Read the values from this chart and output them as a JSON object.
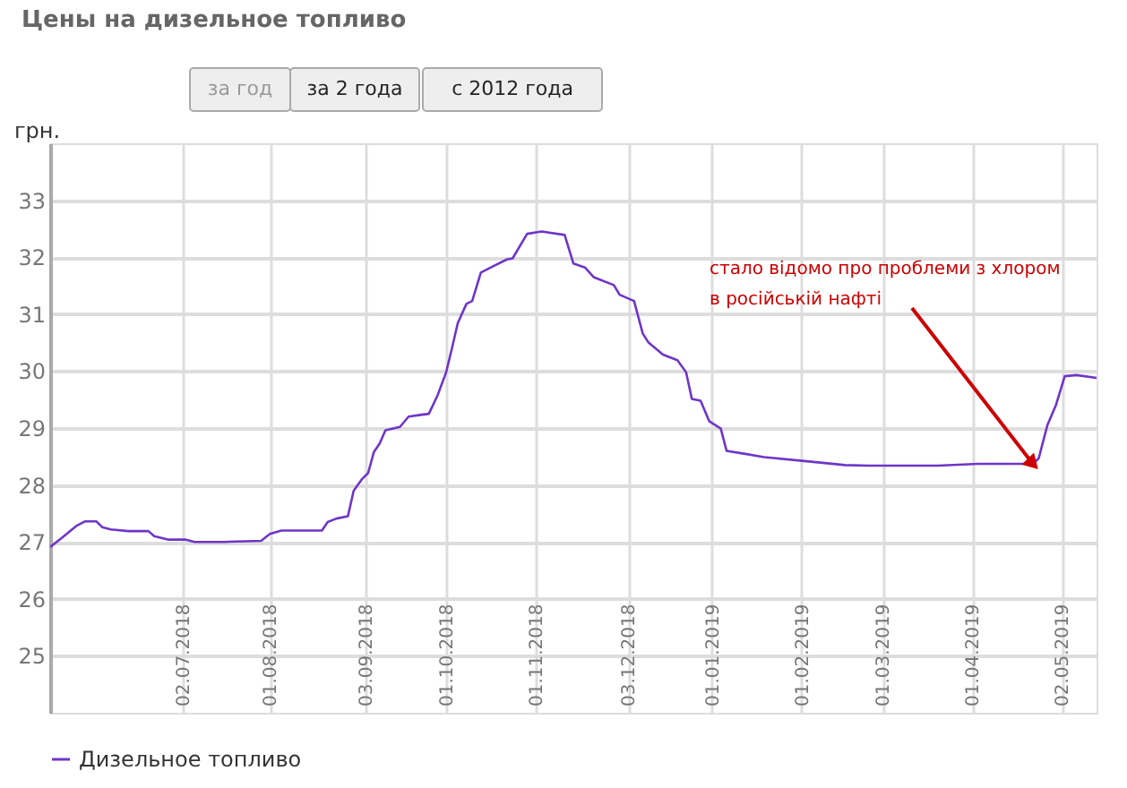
{
  "chart_data": {
    "type": "line",
    "title": "Цены на дизельное топливо",
    "ylabel": "грн.",
    "x": [
      "2018-05-17",
      "2018-05-21",
      "2018-05-26",
      "2018-05-29",
      "2018-06-02",
      "2018-06-04",
      "2018-06-07",
      "2018-06-13",
      "2018-06-20",
      "2018-06-22",
      "2018-06-27",
      "2018-07-03",
      "2018-07-06",
      "2018-07-16",
      "2018-07-29",
      "2018-08-01",
      "2018-08-05",
      "2018-08-19",
      "2018-08-21",
      "2018-08-24",
      "2018-08-28",
      "2018-08-30",
      "2018-09-02",
      "2018-09-04",
      "2018-09-06",
      "2018-09-08",
      "2018-09-10",
      "2018-09-15",
      "2018-09-18",
      "2018-09-22",
      "2018-09-25",
      "2018-09-28",
      "2018-10-01",
      "2018-10-03",
      "2018-10-05",
      "2018-10-08",
      "2018-10-10",
      "2018-10-13",
      "2018-10-18",
      "2018-10-22",
      "2018-10-24",
      "2018-10-29",
      "2018-11-03",
      "2018-11-11",
      "2018-11-14",
      "2018-11-18",
      "2018-11-21",
      "2018-11-28",
      "2018-11-30",
      "2018-12-05",
      "2018-12-08",
      "2018-12-10",
      "2018-12-15",
      "2018-12-20",
      "2018-12-23",
      "2018-12-25",
      "2018-12-28",
      "2018-12-31",
      "2019-01-04",
      "2019-01-06",
      "2019-01-12",
      "2019-01-19",
      "2019-02-02",
      "2019-02-16",
      "2019-02-24",
      "2019-03-20",
      "2019-04-03",
      "2019-04-22",
      "2019-04-24",
      "2019-04-27",
      "2019-04-30",
      "2019-05-03",
      "2019-05-07",
      "2019-05-14"
    ],
    "series": [
      {
        "name": "Дизельное топливо",
        "color": "#6f35c8",
        "values": [
          26.91,
          27.07,
          27.28,
          27.36,
          27.36,
          27.26,
          27.22,
          27.19,
          27.19,
          27.1,
          27.04,
          27.04,
          27.0,
          27.0,
          27.02,
          27.14,
          27.2,
          27.2,
          27.35,
          27.41,
          27.45,
          27.9,
          28.11,
          28.21,
          28.58,
          28.73,
          28.96,
          29.02,
          29.2,
          29.23,
          29.25,
          29.57,
          29.98,
          30.4,
          30.84,
          31.18,
          31.23,
          31.73,
          31.86,
          31.96,
          31.98,
          32.41,
          32.45,
          32.39,
          31.89,
          31.82,
          31.65,
          31.51,
          31.34,
          31.23,
          30.66,
          30.5,
          30.29,
          30.19,
          29.98,
          29.51,
          29.48,
          29.12,
          28.99,
          28.6,
          28.55,
          28.49,
          28.42,
          28.35,
          28.34,
          28.34,
          28.37,
          28.37,
          28.47,
          29.05,
          29.41,
          29.91,
          29.93,
          29.88
        ]
      }
    ],
    "xlim": [
      "2018-05-17",
      "2019-05-14"
    ],
    "xticks": [
      {
        "value": "2018-07-02",
        "label": "02.07.2018"
      },
      {
        "value": "2018-08-01",
        "label": "01.08.2018"
      },
      {
        "value": "2018-09-03",
        "label": "03.09.2018"
      },
      {
        "value": "2018-10-01",
        "label": "01.10.2018"
      },
      {
        "value": "2018-11-01",
        "label": "01.11.2018"
      },
      {
        "value": "2018-12-03",
        "label": "03.12.2018"
      },
      {
        "value": "2019-01-01",
        "label": "01.01.2019"
      },
      {
        "value": "2019-02-01",
        "label": "01.02.2019"
      },
      {
        "value": "2019-03-01",
        "label": "01.03.2019"
      },
      {
        "value": "2019-04-01",
        "label": "01.04.2019"
      },
      {
        "value": "2019-05-02",
        "label": "02.05.2019"
      }
    ],
    "ylim": [
      24,
      34
    ],
    "yticks": [
      25,
      26,
      27,
      28,
      29,
      30,
      31,
      32,
      33
    ],
    "grid": true,
    "legend": "bottom left",
    "marker": "none",
    "line_style": "solid",
    "annotations": [
      "за год",
      "за 2 года",
      "с 2012 года",
      {
        "text": "стало відомо про проблеми з хлором\nв російській нафті",
        "x": "2019-04-22",
        "y": 28.37
      }
    ]
  }
}
